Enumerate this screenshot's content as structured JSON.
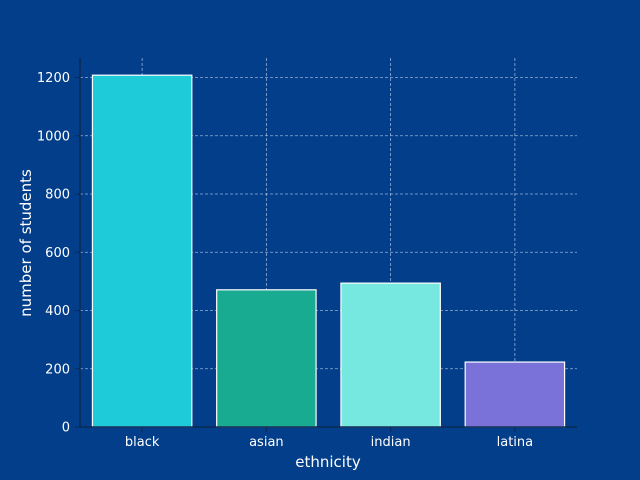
{
  "chart_data": {
    "type": "bar",
    "title": "",
    "xlabel": "ethnicity",
    "ylabel": "number of students",
    "categories": [
      "black",
      "asian",
      "indian",
      "latina"
    ],
    "values": [
      1208,
      471,
      494,
      223
    ],
    "colors": [
      "#1ecbd9",
      "#19aa92",
      "#76e8e0",
      "#7b72d9"
    ],
    "ylim": [
      0,
      1267
    ],
    "yticks": [
      0,
      200,
      400,
      600,
      800,
      1000,
      1200
    ],
    "grid": true,
    "background": "#023e8a",
    "bar_edge_color": "#ffffff"
  }
}
